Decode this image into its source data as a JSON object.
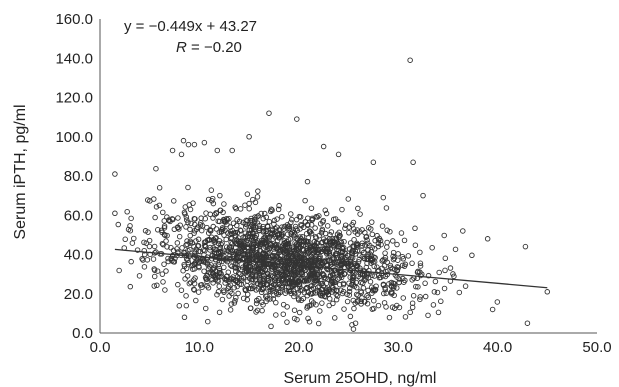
{
  "chart_data": {
    "type": "scatter",
    "title": "",
    "xlabel": "Serum 25OHD, ng/ml",
    "ylabel": "Serum iPTH, pg/ml",
    "xlim": [
      0,
      50
    ],
    "ylim": [
      0,
      160
    ],
    "x_ticks": [
      "0.0",
      "10.0",
      "20.0",
      "30.0",
      "40.0",
      "50.0"
    ],
    "y_ticks": [
      "0.0",
      "20.0",
      "40.0",
      "60.0",
      "80.0",
      "100.0",
      "120.0",
      "140.0",
      "160.0"
    ],
    "grid": false,
    "marker": "open-circle",
    "colors": {
      "marker": "#333333",
      "trendline": "#333333",
      "axis": "#555555"
    },
    "trendline": {
      "slope": -0.449,
      "intercept": 43.27,
      "x_range": [
        1.5,
        45
      ]
    },
    "annotation": {
      "equation": "y = −0.449x + 43.27",
      "r_label": "R",
      "r_value": " = −0.20"
    },
    "cloud": {
      "n": 1900,
      "x_mean": 18.5,
      "x_sd": 6.5,
      "x_range": [
        1.5,
        45
      ],
      "residual_sd": 11.5,
      "y_range": [
        2,
        100
      ]
    },
    "points": [
      [
        1.5,
        81
      ],
      [
        1.5,
        61
      ],
      [
        7.3,
        93
      ],
      [
        8.2,
        91
      ],
      [
        8.4,
        98
      ],
      [
        8.9,
        96
      ],
      [
        9.5,
        96
      ],
      [
        10.5,
        97
      ],
      [
        11.8,
        93
      ],
      [
        13.3,
        93
      ],
      [
        15.0,
        100
      ],
      [
        17.0,
        112
      ],
      [
        19.8,
        109
      ],
      [
        22.5,
        95
      ],
      [
        24.0,
        91
      ],
      [
        27.5,
        87
      ],
      [
        31.2,
        139
      ],
      [
        31.5,
        87
      ],
      [
        32.5,
        70
      ],
      [
        36.5,
        52
      ],
      [
        39.0,
        48
      ],
      [
        42.8,
        44
      ],
      [
        43.0,
        5
      ],
      [
        45.0,
        21
      ],
      [
        39.5,
        12
      ],
      [
        33.0,
        9
      ],
      [
        25.5,
        2
      ],
      [
        8.5,
        8
      ],
      [
        5.5,
        32
      ],
      [
        4.5,
        40
      ],
      [
        6.0,
        74
      ],
      [
        28.5,
        69
      ]
    ]
  }
}
